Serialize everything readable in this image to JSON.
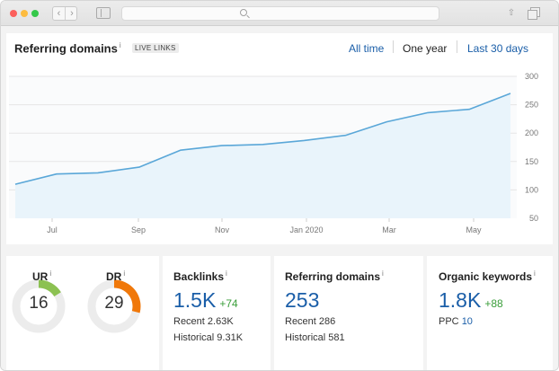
{
  "browser": {
    "back_glyph": "‹",
    "forward_glyph": "›",
    "share_glyph": "⇧"
  },
  "header": {
    "title": "Referring domains",
    "info": "i",
    "badge": "LIVE LINKS",
    "ranges": [
      {
        "label": "All time",
        "active": false
      },
      {
        "label": "One year",
        "active": true
      },
      {
        "label": "Last 30 days",
        "active": false
      }
    ]
  },
  "chart_data": {
    "type": "area",
    "x_labels": [
      "Jul",
      "Sep",
      "Nov",
      "Jan 2020",
      "Mar",
      "May"
    ],
    "y_ticks": [
      50,
      100,
      150,
      200,
      250,
      300
    ],
    "ylim": [
      50,
      300
    ],
    "grid": true,
    "series": [
      {
        "color": "#5aa7d8",
        "fill": "#e9f4fb",
        "x": [
          "Jun",
          "Jul",
          "Aug",
          "Sep",
          "Oct",
          "Nov",
          "Dec",
          "Jan 2020",
          "Feb",
          "Mar",
          "Apr",
          "May",
          "Jun"
        ],
        "values": [
          110,
          128,
          130,
          140,
          170,
          178,
          180,
          187,
          196,
          220,
          236,
          242,
          270
        ]
      }
    ]
  },
  "stats": {
    "ur": {
      "label": "UR",
      "info": "i",
      "value": "16",
      "fraction": 0.16,
      "color": "#8cc152"
    },
    "dr": {
      "label": "DR",
      "info": "i",
      "value": "29",
      "fraction": 0.29,
      "color": "#f0780a"
    },
    "backlinks": {
      "title": "Backlinks",
      "info": "i",
      "value": "1.5K",
      "delta": "+74",
      "recent": "Recent 2.63K",
      "historical": "Historical 9.31K"
    },
    "referring": {
      "title": "Referring domains",
      "info": "i",
      "value": "253",
      "recent": "Recent 286",
      "historical": "Historical 581"
    },
    "organic": {
      "title": "Organic keywords",
      "info": "i",
      "value": "1.8K",
      "delta": "+88",
      "ppc_label": "PPC",
      "ppc_value": "10"
    }
  }
}
